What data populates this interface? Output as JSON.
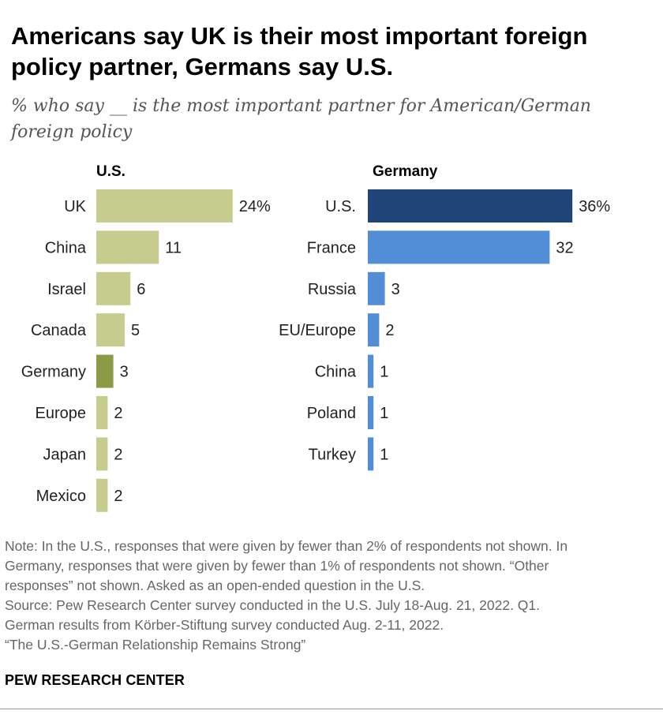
{
  "title": "Americans say UK is their most important foreign policy partner, Germans say U.S.",
  "subtitle": "% who say __ is the most important partner for American/German foreign policy",
  "notes": [
    "Note: In the U.S., responses that were given by fewer than 2% of respondents not shown. In",
    "Germany, responses that were given by fewer than 1% of respondents not shown. “Other",
    "responses” not shown. Asked as an open-ended question in the U.S.",
    "Source: Pew Research Center survey conducted in the U.S. July 18-Aug. 21, 2022. Q1.",
    "German results from Körber-Stiftung survey conducted Aug. 2-11, 2022.",
    "“The U.S.-German Relationship Remains Strong”"
  ],
  "brand": "PEW RESEARCH CENTER",
  "chart_data": [
    {
      "type": "bar",
      "orientation": "horizontal",
      "panel_label": "U.S.",
      "categories": [
        "UK",
        "China",
        "Israel",
        "Canada",
        "Germany",
        "Europe",
        "Japan",
        "Mexico"
      ],
      "values": [
        24,
        11,
        6,
        5,
        3,
        2,
        2,
        2
      ],
      "value_labels": [
        "24%",
        "11",
        "6",
        "5",
        "3",
        "2",
        "2",
        "2"
      ],
      "colors": [
        "#c5cc8e",
        "#c5cc8e",
        "#c5cc8e",
        "#c5cc8e",
        "#8a9a45",
        "#c5cc8e",
        "#c5cc8e",
        "#c5cc8e"
      ],
      "xlim": [
        0,
        36
      ]
    },
    {
      "type": "bar",
      "orientation": "horizontal",
      "panel_label": "Germany",
      "categories": [
        "U.S.",
        "France",
        "Russia",
        "EU/Europe",
        "China",
        "Poland",
        "Turkey"
      ],
      "values": [
        36,
        32,
        3,
        2,
        1,
        1,
        1
      ],
      "value_labels": [
        "36%",
        "32",
        "3",
        "2",
        "1",
        "1",
        "1"
      ],
      "colors": [
        "#1f4478",
        "#528ed6",
        "#528ed6",
        "#528ed6",
        "#528ed6",
        "#528ed6",
        "#528ed6"
      ],
      "xlim": [
        0,
        36
      ]
    }
  ]
}
